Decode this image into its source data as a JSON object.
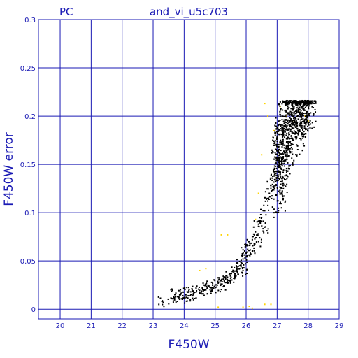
{
  "chart_data": {
    "type": "scatter",
    "title_left": "PC",
    "title": "and_vi_u5c703",
    "xlabel": "F450W",
    "ylabel": "F450W error",
    "xlim": [
      19.3,
      29.0
    ],
    "ylim": [
      -0.01,
      0.3
    ],
    "x_ticks": [
      "20",
      "21",
      "22",
      "23",
      "24",
      "25",
      "26",
      "27",
      "28",
      "29"
    ],
    "y_ticks": [
      "0",
      "0.05",
      "0.1",
      "0.15",
      "0.2",
      "0.25",
      "0.3"
    ],
    "grid": true,
    "series": [
      {
        "color": "#000000",
        "marker": "dot",
        "points": [
          [
            23.3,
            0.008
          ],
          [
            23.6,
            0.011
          ],
          [
            23.7,
            0.015
          ],
          [
            23.8,
            0.013
          ],
          [
            23.9,
            0.016
          ],
          [
            24.0,
            0.012
          ],
          [
            24.1,
            0.018
          ],
          [
            24.2,
            0.014
          ],
          [
            24.3,
            0.016
          ],
          [
            24.4,
            0.019
          ],
          [
            24.5,
            0.017
          ],
          [
            24.6,
            0.021
          ],
          [
            24.7,
            0.02
          ],
          [
            24.8,
            0.024
          ],
          [
            24.9,
            0.022
          ],
          [
            25.0,
            0.025
          ],
          [
            25.1,
            0.027
          ],
          [
            25.2,
            0.03
          ],
          [
            25.3,
            0.029
          ],
          [
            25.4,
            0.033
          ],
          [
            25.5,
            0.035
          ],
          [
            25.6,
            0.038
          ],
          [
            25.7,
            0.042
          ],
          [
            25.75,
            0.036
          ],
          [
            25.8,
            0.045
          ],
          [
            25.85,
            0.048
          ],
          [
            25.9,
            0.052
          ],
          [
            26.0,
            0.058
          ],
          [
            26.05,
            0.062
          ],
          [
            26.1,
            0.066
          ],
          [
            26.2,
            0.072
          ],
          [
            26.3,
            0.08
          ],
          [
            26.4,
            0.088
          ],
          [
            26.5,
            0.095
          ],
          [
            26.6,
            0.102
          ],
          [
            26.7,
            0.112
          ],
          [
            26.75,
            0.12
          ],
          [
            26.8,
            0.128
          ],
          [
            26.9,
            0.138
          ],
          [
            26.95,
            0.148
          ],
          [
            27.0,
            0.155
          ],
          [
            27.05,
            0.165
          ],
          [
            27.1,
            0.172
          ],
          [
            27.2,
            0.18
          ],
          [
            27.3,
            0.188
          ],
          [
            27.4,
            0.195
          ],
          [
            27.5,
            0.2
          ],
          [
            27.6,
            0.205
          ],
          [
            27.7,
            0.208
          ],
          [
            27.8,
            0.21
          ],
          [
            27.9,
            0.212
          ],
          [
            28.0,
            0.214
          ],
          [
            28.1,
            0.215
          ],
          [
            27.2,
            0.214
          ],
          [
            27.4,
            0.213
          ],
          [
            27.6,
            0.215
          ],
          [
            27.9,
            0.216
          ],
          [
            27.3,
            0.16
          ],
          [
            27.5,
            0.175
          ],
          [
            27.8,
            0.19
          ],
          [
            27.1,
            0.14
          ],
          [
            27.2,
            0.13
          ],
          [
            26.9,
            0.1
          ],
          [
            26.6,
            0.085
          ],
          [
            26.4,
            0.07
          ],
          [
            26.2,
            0.06
          ],
          [
            25.9,
            0.04
          ],
          [
            25.6,
            0.032
          ],
          [
            25.3,
            0.024
          ]
        ]
      },
      {
        "color": "#ffd400",
        "marker": "dot",
        "points": [
          [
            24.5,
            0.04
          ],
          [
            24.7,
            0.042
          ],
          [
            25.1,
            0.002
          ],
          [
            25.2,
            0.077
          ],
          [
            25.4,
            0.077
          ],
          [
            25.9,
            0.002
          ],
          [
            26.1,
            0.003
          ],
          [
            26.2,
            0.001
          ],
          [
            26.3,
            0.093
          ],
          [
            26.4,
            0.12
          ],
          [
            26.5,
            0.16
          ],
          [
            26.6,
            0.005
          ],
          [
            26.7,
            0.2
          ],
          [
            26.8,
            0.005
          ],
          [
            26.6,
            0.213
          ],
          [
            26.9,
            0.185
          ],
          [
            27.1,
            0.21
          ],
          [
            27.3,
            0.2
          ],
          [
            27.5,
            0.195
          ],
          [
            27.7,
            0.205
          ],
          [
            27.9,
            0.2
          ],
          [
            28.0,
            0.195
          ]
        ]
      }
    ]
  }
}
